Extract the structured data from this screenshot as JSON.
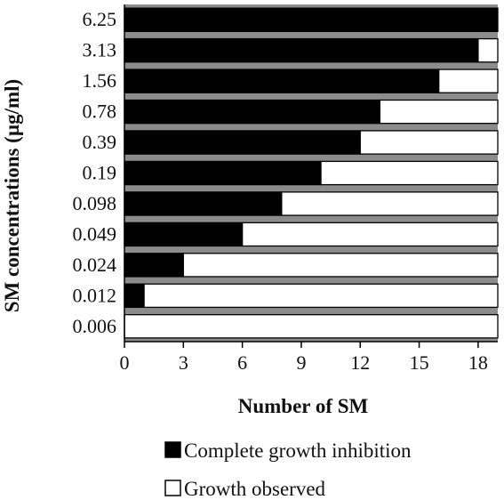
{
  "chart_data": {
    "type": "bar",
    "orientation": "horizontal",
    "stacked": true,
    "title": "",
    "xlabel": "Number of SM",
    "ylabel": "SM concentrations (µg/ml)",
    "categories": [
      "6.25",
      "3.13",
      "1.56",
      "0.78",
      "0.39",
      "0.19",
      "0.098",
      "0.049",
      "0.024",
      "0.012",
      "0.006"
    ],
    "series": [
      {
        "name": "Complete growth inhibition",
        "color": "#000000",
        "values": [
          19,
          18,
          16,
          13,
          12,
          10,
          8,
          6,
          3,
          1,
          0
        ]
      },
      {
        "name": "Growth observed",
        "color": "#ffffff",
        "values": [
          0,
          1,
          3,
          6,
          7,
          9,
          11,
          13,
          16,
          18,
          19
        ]
      }
    ],
    "xlim": [
      0,
      19
    ],
    "xticks": [
      "0",
      "3",
      "6",
      "9",
      "12",
      "15",
      "18"
    ],
    "grid": false,
    "legend_position": "bottom"
  }
}
